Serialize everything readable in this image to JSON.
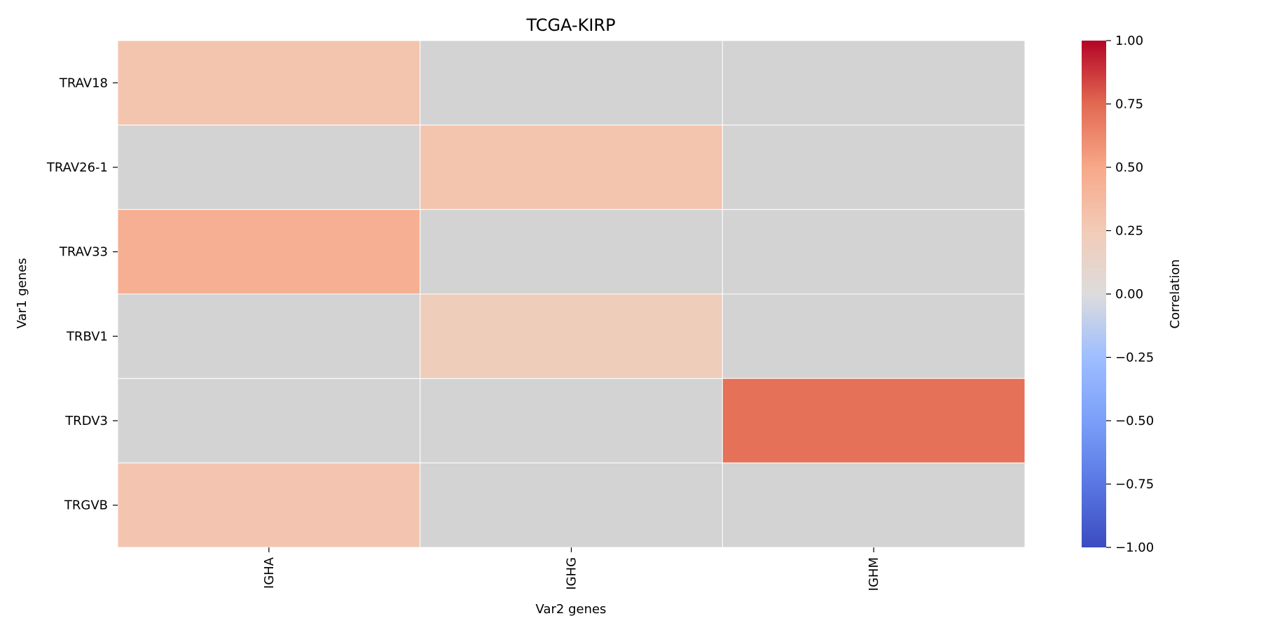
{
  "chart_data": {
    "type": "heatmap",
    "title": "TCGA-KIRP",
    "xlabel": "Var2 genes",
    "ylabel": "Var1 genes",
    "x_categories": [
      "IGHA",
      "IGHG",
      "IGHM"
    ],
    "y_categories": [
      "TRAV18",
      "TRAV26-1",
      "TRAV33",
      "TRBV1",
      "TRDV3",
      "TRGVB"
    ],
    "values": [
      [
        0.3,
        null,
        null
      ],
      [
        null,
        0.3,
        null
      ],
      [
        0.45,
        null,
        null
      ],
      [
        null,
        0.22,
        null
      ],
      [
        null,
        null,
        0.72
      ],
      [
        0.29,
        null,
        null
      ]
    ],
    "missing_color": "#d3d3d3",
    "colorbar": {
      "label": "Correlation",
      "range": [
        -1,
        1
      ],
      "ticks": [
        1.0,
        0.75,
        0.5,
        0.25,
        0.0,
        -0.25,
        -0.5,
        -0.75,
        -1.0
      ],
      "tick_labels": [
        "1.00",
        "0.75",
        "0.50",
        "0.25",
        "0.00",
        "−0.25",
        "−0.50",
        "−0.75",
        "−1.00"
      ],
      "colormap": "coolwarm"
    },
    "grid": false
  }
}
